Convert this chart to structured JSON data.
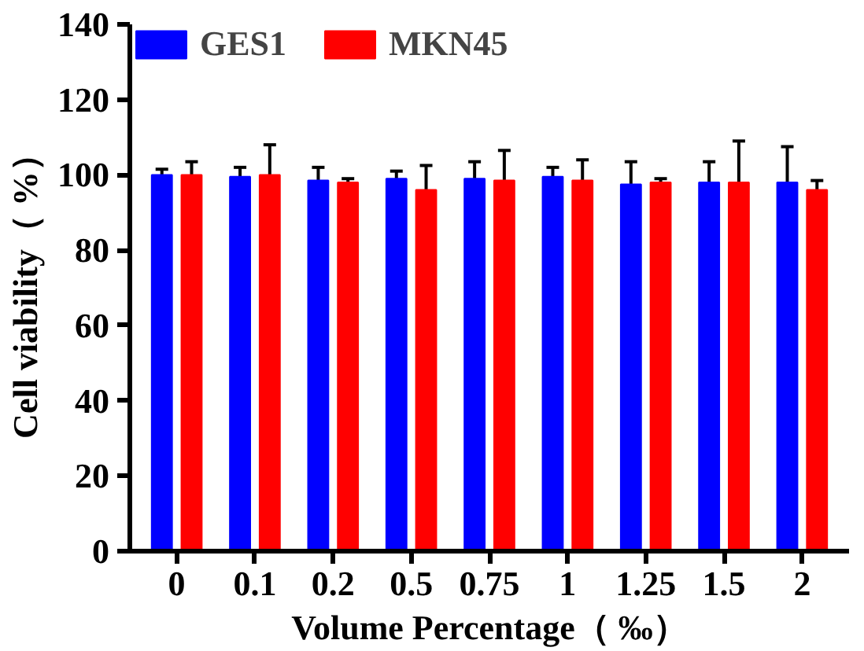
{
  "chart_data": {
    "type": "bar",
    "xlabel": "Volume Percentage（ ‰）",
    "ylabel": "Cell viability（ %）",
    "categories": [
      "0",
      "0.1",
      "0.2",
      "0.5",
      "0.75",
      "1",
      "1.25",
      "1.5",
      "2"
    ],
    "series": [
      {
        "name": "GES1",
        "color": "#0000ff",
        "values": [
          100,
          99.5,
          98.5,
          99,
          99,
          99.5,
          97.5,
          98,
          98
        ],
        "errors": [
          [
            100,
            101.5
          ],
          [
            99.5,
            102
          ],
          [
            98.5,
            102
          ],
          [
            99,
            101
          ],
          [
            99,
            103.5
          ],
          [
            99.5,
            102
          ],
          [
            97.5,
            103.5
          ],
          [
            98,
            103.5
          ],
          [
            98,
            107.5
          ]
        ]
      },
      {
        "name": "MKN45",
        "color": "#ff0000",
        "values": [
          100,
          100,
          98,
          96,
          98.5,
          98.5,
          98,
          98,
          96
        ],
        "errors": [
          [
            100,
            103.5
          ],
          [
            100,
            108
          ],
          [
            98,
            99
          ],
          [
            96,
            102.5
          ],
          [
            98.5,
            106.5
          ],
          [
            98.5,
            104
          ],
          [
            98,
            99
          ],
          [
            98,
            109
          ],
          [
            96,
            98.5
          ]
        ]
      }
    ],
    "ylim": [
      0,
      140
    ],
    "yticks": [
      0,
      20,
      40,
      60,
      80,
      100,
      120,
      140
    ],
    "grid": false,
    "legend": "top left"
  }
}
